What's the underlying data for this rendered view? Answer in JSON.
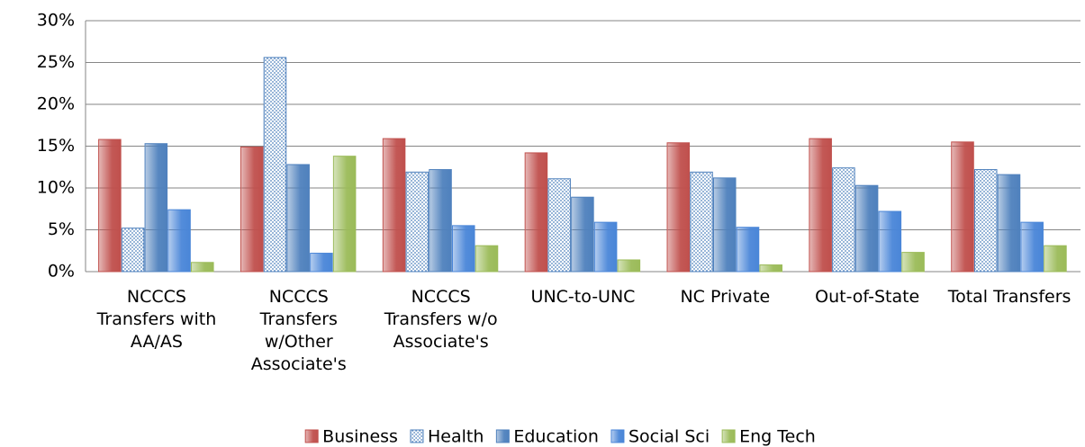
{
  "chart_data": {
    "type": "bar",
    "categories": [
      "NCCCS Transfers with AA/AS",
      "NCCCS Transfers w/Other Associate's",
      "NCCCS Transfers w/o Associate's",
      "UNC-to-UNC",
      "NC Private",
      "Out-of-State",
      "Total Transfers"
    ],
    "series": [
      {
        "name": "Business",
        "color": "#c0504d",
        "values": [
          15.8,
          14.9,
          15.9,
          14.2,
          15.4,
          15.9,
          15.5
        ]
      },
      {
        "name": "Health",
        "color": "#4f81bd",
        "pattern": "dots",
        "values": [
          5.2,
          25.6,
          11.9,
          11.1,
          11.9,
          12.4,
          12.2
        ]
      },
      {
        "name": "Education",
        "color": "#4f81bd",
        "values": [
          15.3,
          12.8,
          12.2,
          8.9,
          11.2,
          10.3,
          11.6
        ]
      },
      {
        "name": "Social Sci",
        "color": "#4a86d8",
        "values": [
          7.4,
          2.2,
          5.5,
          5.9,
          5.3,
          7.2,
          5.9
        ]
      },
      {
        "name": "Eng Tech",
        "color": "#9bbb59",
        "values": [
          1.1,
          13.8,
          3.1,
          1.4,
          0.8,
          2.3,
          3.1
        ]
      }
    ],
    "ylim": [
      0,
      30
    ],
    "yticks": [
      {
        "value": 0,
        "label": "0%"
      },
      {
        "value": 5,
        "label": "5%"
      },
      {
        "value": 10,
        "label": "10%"
      },
      {
        "value": 15,
        "label": "15%"
      },
      {
        "value": 20,
        "label": "20%"
      },
      {
        "value": 25,
        "label": "25%"
      },
      {
        "value": 30,
        "label": "30%"
      }
    ],
    "grid": true,
    "legend": "bottom"
  }
}
